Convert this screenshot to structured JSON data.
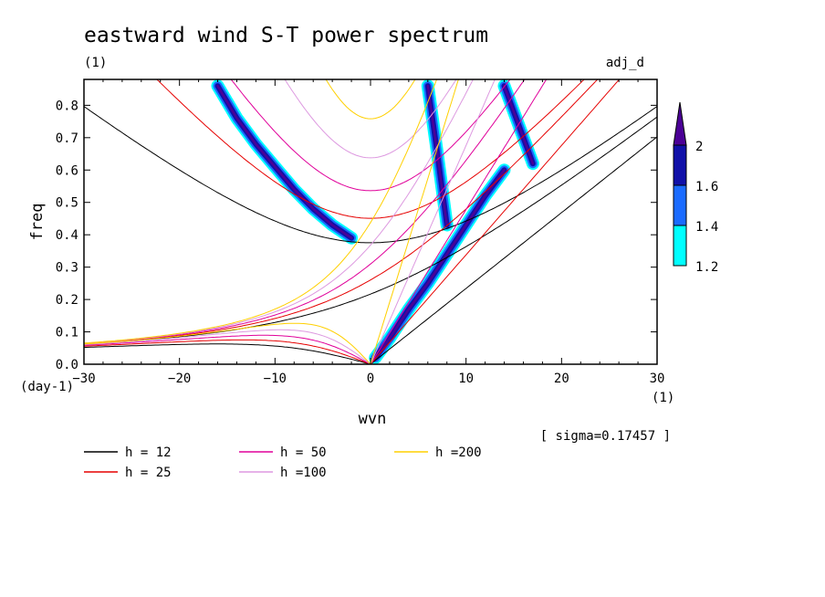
{
  "chart_data": {
    "type": "heatmap",
    "title": "eastward wind S-T power spectrum",
    "subtitle_left": "(1)",
    "subtitle_right": "adj_d",
    "xlabel": "wvn",
    "ylabel": "freq",
    "x_unit": "(1)",
    "y_unit": "(day-1)",
    "xlim": [
      -30,
      30
    ],
    "ylim": [
      0,
      0.88
    ],
    "x_ticks": [
      "−30",
      "−20",
      "−10",
      "0",
      "10",
      "20",
      "30"
    ],
    "x_tick_values": [
      -30,
      -20,
      -10,
      0,
      10,
      20,
      30
    ],
    "y_ticks": [
      "0.0",
      "0.1",
      "0.2",
      "0.3",
      "0.4",
      "0.5",
      "0.6",
      "0.7",
      "0.8"
    ],
    "y_tick_values": [
      0,
      0.1,
      0.2,
      0.3,
      0.4,
      0.5,
      0.6,
      0.7,
      0.8
    ],
    "annotation": "[ sigma=0.17457 ]",
    "colorbar": {
      "levels": [
        1.2,
        1.4,
        1.6,
        2
      ],
      "labels": [
        "1.2",
        "1.4",
        "1.6",
        "2"
      ],
      "colors": [
        "#00ffff",
        "#1a6bff",
        "#1010a8",
        "#4b0096"
      ]
    },
    "contour_colors": {
      "cyan": "#00ffff",
      "mid_blue": "#1a6bff",
      "dark_blue": "#1010a8",
      "purple": "#4b0096"
    },
    "power_features": [
      {
        "name": "westward band",
        "x": [
          -16,
          -14,
          -12,
          -10,
          -8,
          -6,
          -4,
          -2
        ],
        "y": [
          0.86,
          0.76,
          0.68,
          0.61,
          0.54,
          0.48,
          0.43,
          0.39
        ]
      },
      {
        "name": "eastward branch",
        "x": [
          6,
          7,
          8
        ],
        "y": [
          0.86,
          0.65,
          0.43
        ]
      },
      {
        "name": "eastward band",
        "x": [
          0.5,
          2,
          4,
          6,
          8,
          10,
          12,
          14
        ],
        "y": [
          0.02,
          0.08,
          0.17,
          0.25,
          0.34,
          0.43,
          0.52,
          0.6
        ]
      },
      {
        "name": "upper-right band",
        "x": [
          14,
          15,
          16,
          17
        ],
        "y": [
          0.86,
          0.78,
          0.7,
          0.62
        ]
      }
    ],
    "series": [
      {
        "name": "h = 12",
        "label": "h = 12",
        "h": 12,
        "color": "#000000"
      },
      {
        "name": "h = 25",
        "label": "h = 25",
        "h": 25,
        "color": "#e60000"
      },
      {
        "name": "h = 50",
        "label": "h = 50",
        "h": 50,
        "color": "#e0009a"
      },
      {
        "name": "h =100",
        "label": "h =100",
        "h": 100,
        "color": "#dd99e0"
      },
      {
        "name": "h =200",
        "label": "h =200",
        "h": 200,
        "color": "#ffd000"
      }
    ],
    "legend_position": "bottom-left",
    "grid": false
  }
}
